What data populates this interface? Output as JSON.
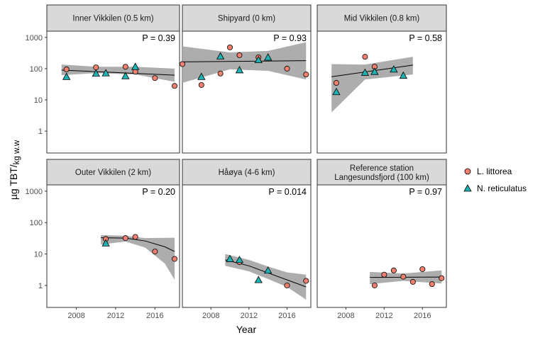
{
  "chart_data": {
    "type": "scatter",
    "xlabel": "Year",
    "ylabel_main": "µg TBT/",
    "ylabel_sub": "kg w.w",
    "xlim": [
      2005,
      2018.5
    ],
    "xticks": [
      2008,
      2012,
      2016
    ],
    "ylim_log10": [
      -0.7,
      3.2
    ],
    "yticks": [
      1,
      10,
      100,
      1000
    ],
    "ytick_labels": [
      "1",
      "10",
      "100",
      "1000"
    ],
    "colors": {
      "littorea": "#F08070",
      "reticulatus": "#1FB2B2",
      "band": "#A9A9A9",
      "strip": "#D9D9D9"
    },
    "legend": [
      {
        "name": "L. littorea",
        "shape": "circle"
      },
      {
        "name": "N. reticulatus",
        "shape": "triangle"
      }
    ],
    "panels": [
      {
        "title": [
          "Inner Vikkilen (0.5 km)"
        ],
        "p_label": "P = 0.39",
        "littorea": [
          [
            2007,
            95
          ],
          [
            2010,
            110
          ],
          [
            2013,
            115
          ],
          [
            2014,
            80
          ],
          [
            2016,
            50
          ],
          [
            2018,
            28
          ]
        ],
        "reticulatus": [
          [
            2007,
            55
          ],
          [
            2010,
            70
          ],
          [
            2011,
            72
          ],
          [
            2013,
            58
          ],
          [
            2014,
            115
          ]
        ],
        "fit": [
          [
            2006.5,
            90
          ],
          [
            2018,
            62
          ]
        ],
        "band_upper": [
          [
            2006.5,
            135
          ],
          [
            2010,
            115
          ],
          [
            2014,
            115
          ],
          [
            2018,
            100
          ]
        ],
        "band_lower": [
          [
            2006.5,
            62
          ],
          [
            2010,
            72
          ],
          [
            2014,
            65
          ],
          [
            2018,
            38
          ]
        ]
      },
      {
        "title": [
          "Shipyard (0 km)"
        ],
        "p_label": "P = 0.93",
        "littorea": [
          [
            2005,
            140
          ],
          [
            2007,
            30
          ],
          [
            2009,
            70
          ],
          [
            2010,
            480
          ],
          [
            2011,
            270
          ],
          [
            2013,
            230
          ],
          [
            2016,
            100
          ],
          [
            2018,
            65
          ]
        ],
        "reticulatus": [
          [
            2007,
            55
          ],
          [
            2009,
            250
          ],
          [
            2011,
            90
          ],
          [
            2013,
            190
          ],
          [
            2014,
            230
          ]
        ],
        "fit": [
          [
            2005,
            165
          ],
          [
            2018,
            180
          ]
        ],
        "band_upper": [
          [
            2005,
            520
          ],
          [
            2010,
            330
          ],
          [
            2014,
            370
          ],
          [
            2018,
            700
          ]
        ],
        "band_lower": [
          [
            2005,
            35
          ],
          [
            2010,
            95
          ],
          [
            2014,
            85
          ],
          [
            2018,
            45
          ]
        ]
      },
      {
        "title": [
          "Mid Vikkilen (0.8 km)"
        ],
        "p_label": "P = 0.58",
        "littorea": [
          [
            2007,
            35
          ],
          [
            2010,
            240
          ],
          [
            2011,
            115
          ]
        ],
        "reticulatus": [
          [
            2007,
            18
          ],
          [
            2010,
            75
          ],
          [
            2011,
            80
          ],
          [
            2013,
            95
          ],
          [
            2014,
            60
          ]
        ],
        "fit": [
          [
            2006.5,
            55
          ],
          [
            2015,
            130
          ]
        ],
        "band_upper": [
          [
            2006.5,
            140
          ],
          [
            2010,
            135
          ],
          [
            2015,
            240
          ]
        ],
        "band_lower": [
          [
            2006.5,
            4
          ],
          [
            2010,
            45
          ],
          [
            2015,
            65
          ]
        ]
      },
      {
        "title": [
          "Outer Vikkilen (2 km)"
        ],
        "p_label": "P = 0.20",
        "littorea": [
          [
            2011,
            30
          ],
          [
            2013,
            32
          ],
          [
            2014,
            35
          ],
          [
            2016,
            12
          ],
          [
            2018,
            7
          ]
        ],
        "reticulatus": [
          [
            2011,
            22
          ]
        ],
        "fit": [
          [
            2010.5,
            33
          ],
          [
            2013,
            32
          ],
          [
            2015,
            26
          ],
          [
            2017,
            17
          ],
          [
            2018,
            12
          ]
        ],
        "band_upper": [
          [
            2010.5,
            40
          ],
          [
            2013,
            38
          ],
          [
            2015,
            32
          ],
          [
            2018,
            33
          ]
        ],
        "band_lower": [
          [
            2010.5,
            20
          ],
          [
            2013,
            25
          ],
          [
            2015,
            16
          ],
          [
            2017,
            5
          ],
          [
            2018,
            1.5
          ]
        ]
      },
      {
        "title": [
          "Håøya (4-6 km)"
        ],
        "p_label": "P = 0.014",
        "littorea": [
          [
            2011,
            5.5
          ],
          [
            2016,
            1
          ],
          [
            2018,
            1.4
          ]
        ],
        "reticulatus": [
          [
            2010,
            7
          ],
          [
            2011,
            6.5
          ],
          [
            2013,
            1.5
          ],
          [
            2014,
            3
          ]
        ],
        "fit": [
          [
            2009.5,
            6.5
          ],
          [
            2012,
            4.2
          ],
          [
            2014,
            2.5
          ],
          [
            2016,
            1.5
          ],
          [
            2018,
            0.9
          ]
        ],
        "band_upper": [
          [
            2009.5,
            10
          ],
          [
            2012,
            6.5
          ],
          [
            2014,
            4
          ],
          [
            2016,
            2.6
          ],
          [
            2018,
            2.2
          ]
        ],
        "band_lower": [
          [
            2009.5,
            4.2
          ],
          [
            2012,
            2.8
          ],
          [
            2014,
            1.6
          ],
          [
            2016,
            0.9
          ],
          [
            2018,
            0.35
          ]
        ]
      },
      {
        "title": [
          "Reference station",
          "Langesundsfjord (100 km)"
        ],
        "p_label": "P = 0.97",
        "littorea": [
          [
            2011,
            1
          ],
          [
            2012,
            2.2
          ],
          [
            2013,
            3
          ],
          [
            2014,
            1.9
          ],
          [
            2015,
            1.3
          ],
          [
            2016,
            3.3
          ],
          [
            2017,
            1.1
          ],
          [
            2018,
            1.7
          ]
        ],
        "reticulatus": [],
        "fit": [
          [
            2010.5,
            1.8
          ],
          [
            2018,
            1.85
          ]
        ],
        "band_upper": [
          [
            2010.5,
            2.7
          ],
          [
            2014,
            2.4
          ],
          [
            2018,
            3.0
          ]
        ],
        "band_lower": [
          [
            2010.5,
            1.1
          ],
          [
            2014,
            1.4
          ],
          [
            2018,
            1.15
          ]
        ]
      }
    ]
  }
}
